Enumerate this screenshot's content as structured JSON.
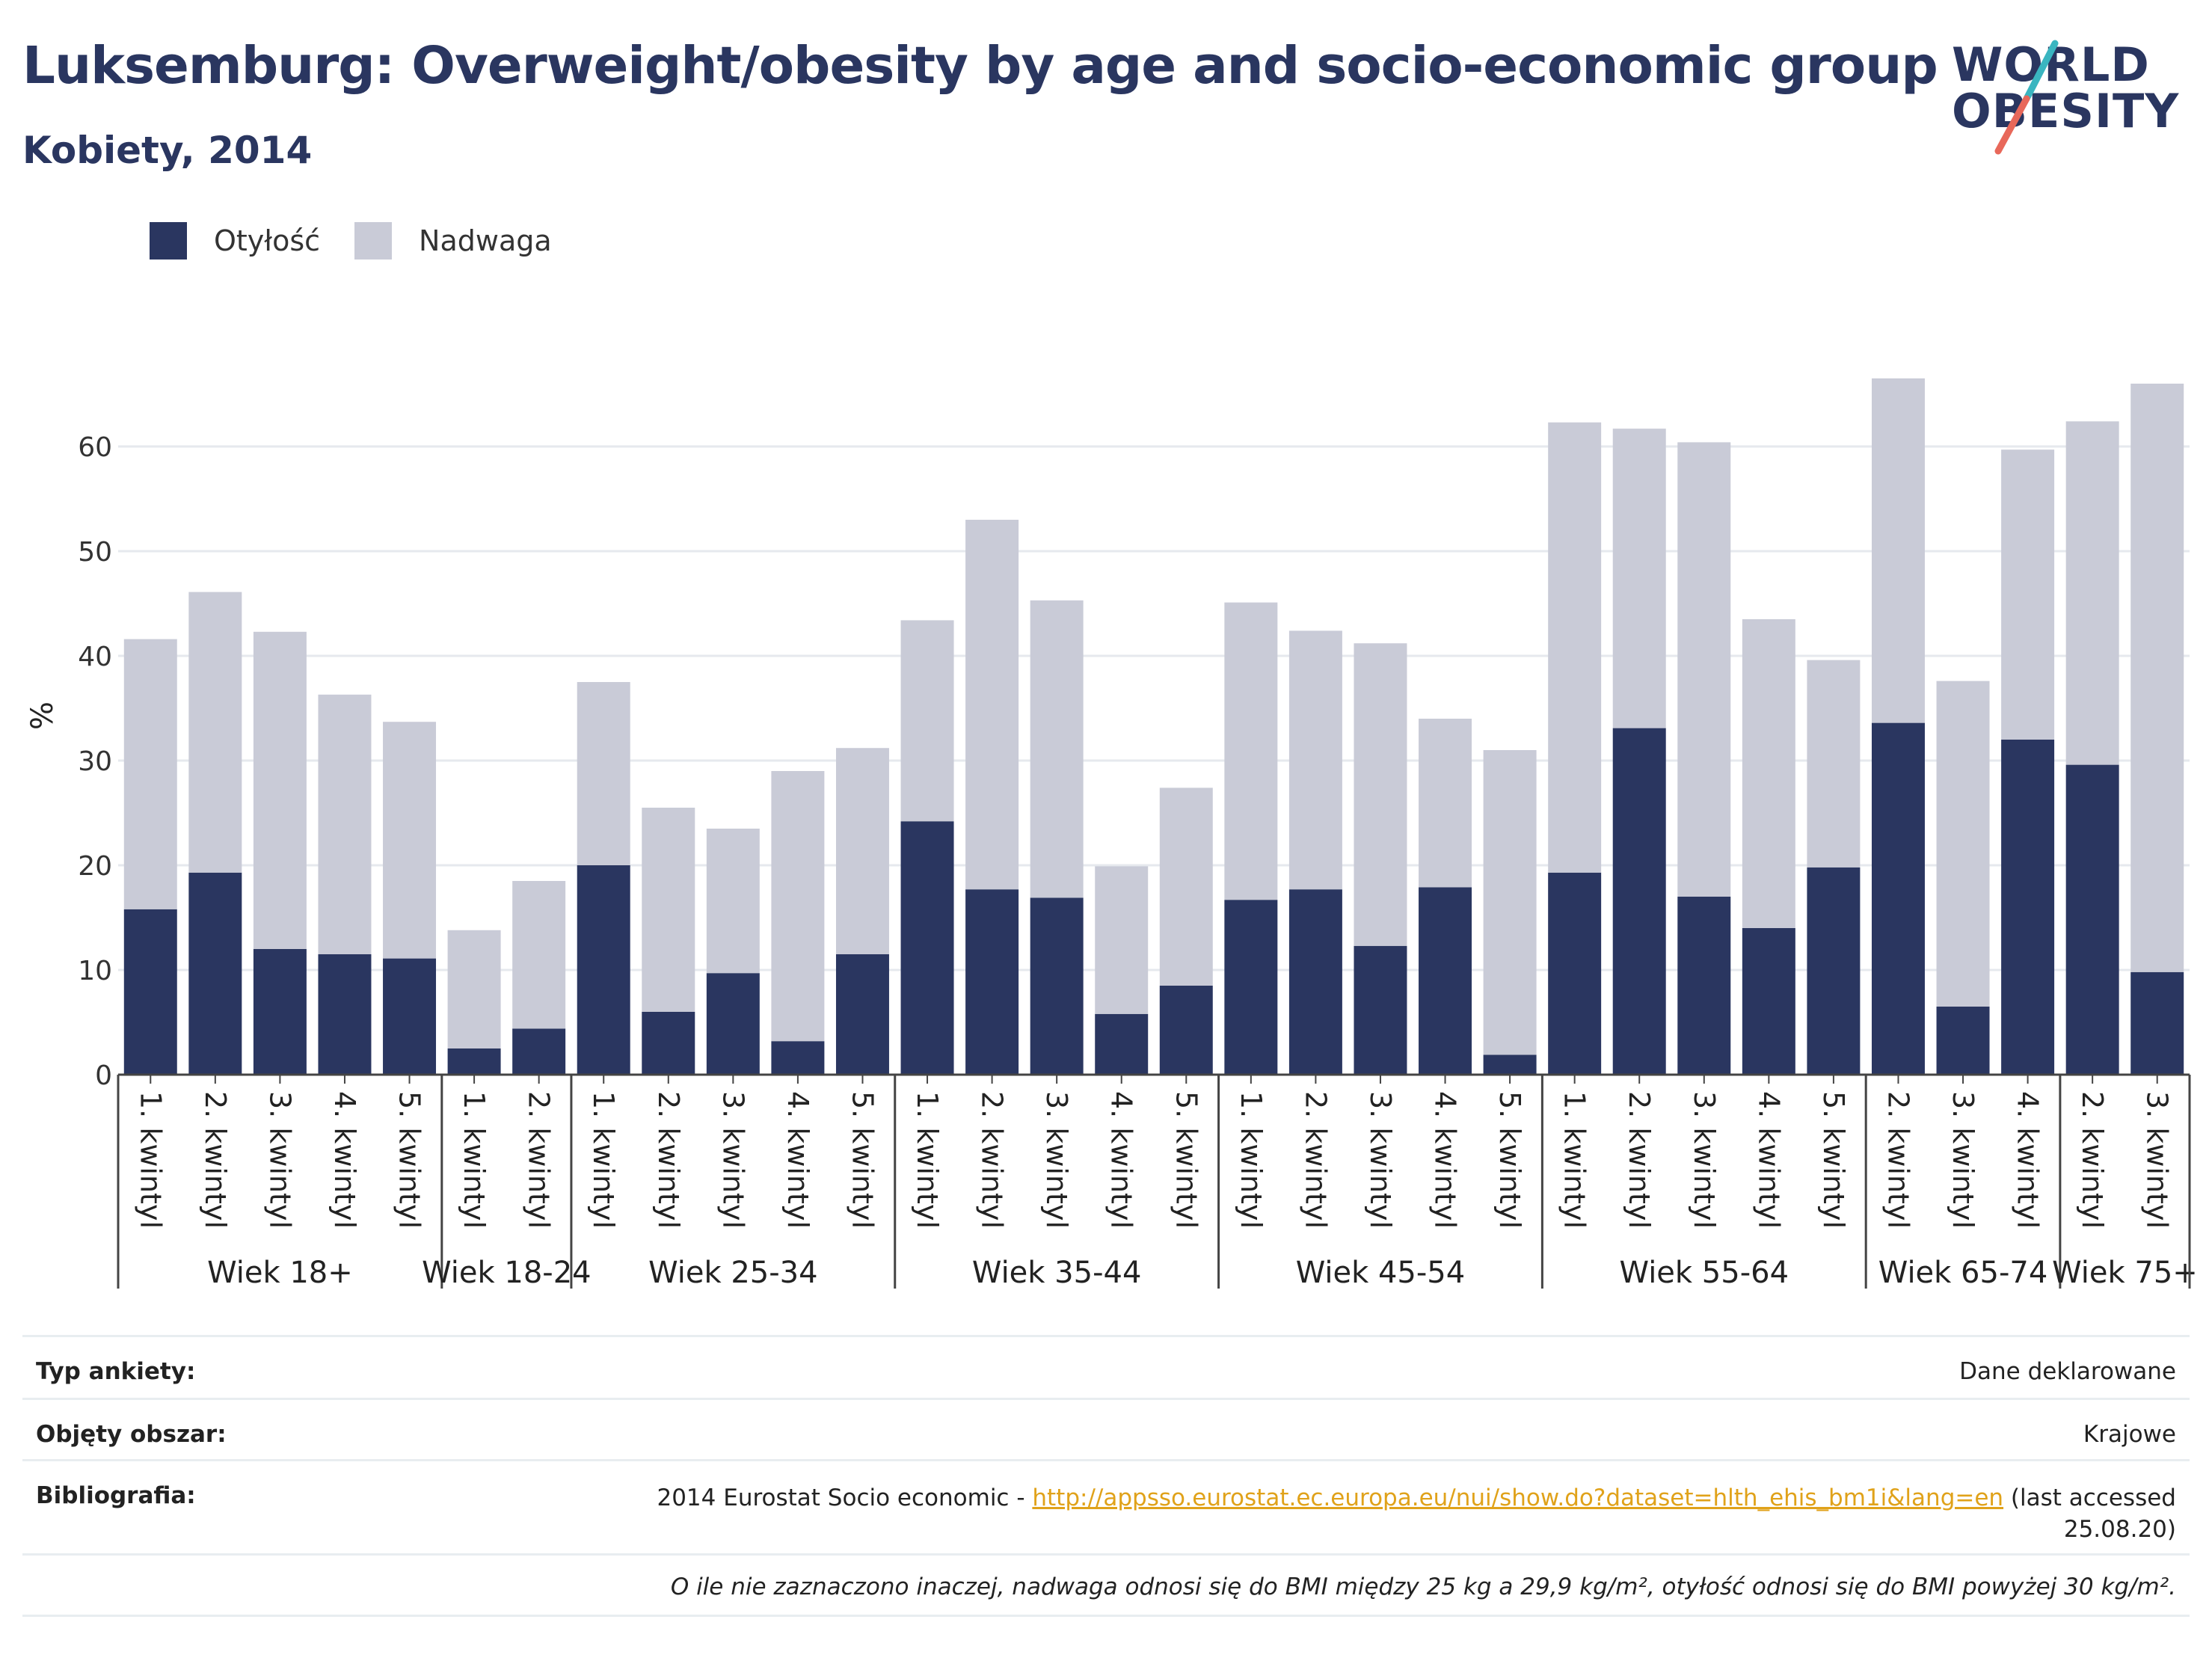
{
  "header": {
    "title": "Luksemburg: Overweight/obesity by age and socio-economic group",
    "subtitle": "Kobiety, 2014"
  },
  "logo": {
    "line1": "WORLD",
    "line2": "OBESITY",
    "colors": {
      "text": "#2a3660",
      "slash_top": "#3ab5c0",
      "slash_bottom": "#e8685a"
    }
  },
  "colors": {
    "obesity": "#2a3660",
    "overweight": "#c9cbd7",
    "grid": "#e6e9ee",
    "axis": "#444444"
  },
  "chart_data": {
    "type": "bar",
    "stacked": true,
    "ylabel": "%",
    "ylim": [
      0,
      67
    ],
    "yticks": [
      0,
      10,
      20,
      30,
      40,
      50,
      60
    ],
    "grid": true,
    "legend_position": "top-left",
    "legend": [
      "Otyłość",
      "Nadwaga"
    ],
    "groups": [
      {
        "name": "Wiek 18+",
        "categories": [
          "1. kwintyl",
          "2. kwintyl",
          "3. kwintyl",
          "4. kwintyl",
          "5. kwintyl"
        ]
      },
      {
        "name": "Wiek 18-24",
        "categories": [
          "1. kwintyl",
          "2. kwintyl"
        ]
      },
      {
        "name": "Wiek 25-34",
        "categories": [
          "1. kwintyl",
          "2. kwintyl",
          "3. kwintyl",
          "4. kwintyl",
          "5. kwintyl"
        ]
      },
      {
        "name": "Wiek 35-44",
        "categories": [
          "1. kwintyl",
          "2. kwintyl",
          "3. kwintyl",
          "4. kwintyl",
          "5. kwintyl"
        ]
      },
      {
        "name": "Wiek 45-54",
        "categories": [
          "1. kwintyl",
          "2. kwintyl",
          "3. kwintyl",
          "4. kwintyl",
          "5. kwintyl"
        ]
      },
      {
        "name": "Wiek 55-64",
        "categories": [
          "1. kwintyl",
          "2. kwintyl",
          "3. kwintyl",
          "4. kwintyl",
          "5. kwintyl"
        ]
      },
      {
        "name": "Wiek 65-74",
        "categories": [
          "2. kwintyl",
          "3. kwintyl",
          "4. kwintyl"
        ]
      },
      {
        "name": "Wiek 75+",
        "categories": [
          "2. kwintyl",
          "3. kwintyl"
        ]
      }
    ],
    "series": [
      {
        "name": "Otyłość",
        "values": [
          15.8,
          19.3,
          12.0,
          11.5,
          11.1,
          2.5,
          4.4,
          20.0,
          6.0,
          9.7,
          3.2,
          11.5,
          24.2,
          17.7,
          16.9,
          5.8,
          8.5,
          16.7,
          17.7,
          12.3,
          17.9,
          1.9,
          19.3,
          33.1,
          17.0,
          14.0,
          19.8,
          33.6,
          6.5,
          32.0,
          29.6,
          9.8
        ]
      },
      {
        "name": "Nadwaga",
        "values": [
          25.8,
          26.8,
          30.3,
          24.8,
          22.6,
          11.3,
          14.1,
          17.5,
          19.5,
          13.8,
          25.8,
          19.7,
          19.2,
          35.3,
          28.4,
          14.1,
          18.9,
          28.4,
          24.7,
          28.9,
          16.1,
          29.1,
          43.0,
          28.6,
          43.4,
          29.5,
          19.8,
          32.9,
          31.1,
          27.7,
          32.8,
          56.2
        ]
      }
    ]
  },
  "footer": {
    "survey_type_label": "Typ ankiety:",
    "survey_type_value": "Dane deklarowane",
    "coverage_label": "Objęty obszar:",
    "coverage_value": "Krajowe",
    "bibliography_label": "Bibliografia:",
    "bibliography_prefix": "2014 Eurostat Socio economic - ",
    "bibliography_link": "http://appsso.eurostat.ec.europa.eu/nui/show.do?dataset=hlth_ehis_bm1i&lang=en",
    "bibliography_suffix": " (last accessed",
    "bibliography_date": "25.08.20)",
    "note": "O ile nie zaznaczono inaczej, nadwaga odnosi się do BMI między 25 kg a 29,9 kg/m², otyłość odnosi się do BMI powyżej 30 kg/m²."
  }
}
